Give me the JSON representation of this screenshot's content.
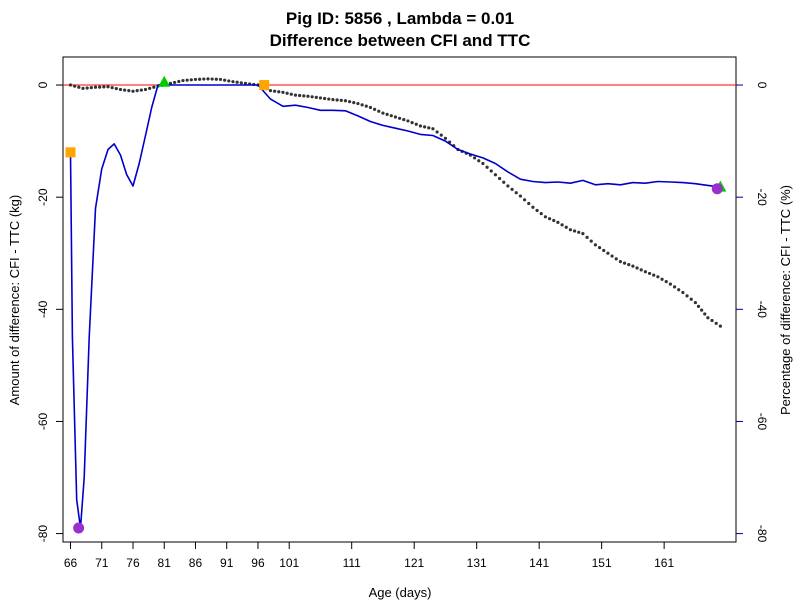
{
  "chart_data": {
    "type": "line",
    "title_line1": "Pig ID: 5856 , Lambda = 0.01",
    "title_line2": "Difference between CFI and TTC",
    "xlabel": "Age (days)",
    "ylabel_left": "Amount of difference: CFI - TTC (kg)",
    "ylabel_right": "Percentage of difference: CFI - TTC (%)",
    "xlim": [
      64.8,
      172.5
    ],
    "ylim_left": [
      -81.5,
      5
    ],
    "ylim_right": [
      -81.5,
      5
    ],
    "x_ticks": [
      66,
      71,
      76,
      81,
      86,
      91,
      96,
      101,
      111,
      121,
      131,
      141,
      151,
      161
    ],
    "y_ticks_left": [
      0,
      -20,
      -40,
      -60,
      -80
    ],
    "y_ticks_right": [
      0,
      -20,
      -40,
      -60,
      -80
    ],
    "reference_line": {
      "y": 0,
      "color": "#ff0000"
    },
    "colors": {
      "amount": "#333333",
      "percentage": "#0000cc",
      "right_axis": "#00008b",
      "orange_marker": "#ffa500",
      "green_marker": "#00cc00",
      "purple_marker": "#9932cc"
    },
    "series": [
      {
        "key": "amount",
        "style": "dotted",
        "x": [
          66,
          68,
          70,
          72,
          74,
          76,
          78,
          80,
          82,
          84,
          86,
          88,
          90,
          92,
          94,
          96,
          98,
          100,
          102,
          104,
          106,
          108,
          110,
          112,
          114,
          116,
          118,
          120,
          122,
          124,
          126,
          128,
          130,
          132,
          134,
          136,
          138,
          140,
          142,
          144,
          146,
          148,
          150,
          152,
          154,
          156,
          158,
          160,
          162,
          164,
          166,
          168,
          170
        ],
        "values": [
          0,
          -0.6,
          -0.4,
          -0.3,
          -0.8,
          -1.1,
          -0.8,
          -0.2,
          0.3,
          0.8,
          1.0,
          1.1,
          1.0,
          0.6,
          0.3,
          0,
          -1.0,
          -1.3,
          -1.8,
          -2.0,
          -2.3,
          -2.6,
          -2.8,
          -3.3,
          -4.0,
          -5.0,
          -5.7,
          -6.4,
          -7.3,
          -7.8,
          -9.5,
          -11.5,
          -12.5,
          -14.0,
          -16.0,
          -18.0,
          -19.8,
          -21.8,
          -23.5,
          -24.5,
          -25.8,
          -26.5,
          -28.5,
          -30.0,
          -31.5,
          -32.3,
          -33.3,
          -34.2,
          -35.5,
          -37.0,
          -38.8,
          -41.5,
          -43.0
        ]
      },
      {
        "key": "percentage",
        "style": "solid",
        "x": [
          66,
          66.3,
          67,
          67.6,
          68.2,
          69,
          70,
          71,
          72,
          73,
          74,
          75,
          76,
          77,
          78,
          79,
          80,
          81,
          82,
          84,
          86,
          88,
          90,
          92,
          94,
          96,
          98,
          100,
          102,
          104,
          106,
          108,
          110,
          112,
          114,
          116,
          118,
          120,
          122,
          124,
          126,
          128,
          130,
          132,
          134,
          136,
          138,
          140,
          142,
          144,
          146,
          148,
          150,
          152,
          154,
          156,
          158,
          160,
          162,
          164,
          166,
          168,
          170
        ],
        "values": [
          -12,
          -45,
          -74,
          -79,
          -70,
          -45,
          -22,
          -15,
          -11.5,
          -10.5,
          -12.5,
          -16,
          -18,
          -14,
          -9,
          -4,
          0,
          0.2,
          0,
          0,
          0,
          0,
          0,
          0,
          0,
          0,
          -2.5,
          -3.8,
          -3.6,
          -4.0,
          -4.5,
          -4.5,
          -4.6,
          -5.5,
          -6.5,
          -7.2,
          -7.7,
          -8.2,
          -8.8,
          -9.0,
          -10.0,
          -11.5,
          -12.3,
          -13.0,
          -14.0,
          -15.5,
          -16.8,
          -17.2,
          -17.4,
          -17.3,
          -17.5,
          -17.0,
          -17.8,
          -17.6,
          -17.8,
          -17.4,
          -17.5,
          -17.2,
          -17.3,
          -17.4,
          -17.6,
          -17.9,
          -18.2
        ]
      }
    ],
    "markers": [
      {
        "shape": "square",
        "color_key": "orange_marker",
        "x": 66,
        "y": -12
      },
      {
        "shape": "square",
        "color_key": "orange_marker",
        "x": 97,
        "y": 0
      },
      {
        "shape": "triangle",
        "color_key": "green_marker",
        "x": 81,
        "y": 0.5
      },
      {
        "shape": "triangle",
        "color_key": "green_marker",
        "x": 170,
        "y": -18.2
      },
      {
        "shape": "circle",
        "color_key": "purple_marker",
        "x": 67.3,
        "y": -79
      },
      {
        "shape": "circle",
        "color_key": "purple_marker",
        "x": 169.5,
        "y": -18.5
      }
    ]
  }
}
